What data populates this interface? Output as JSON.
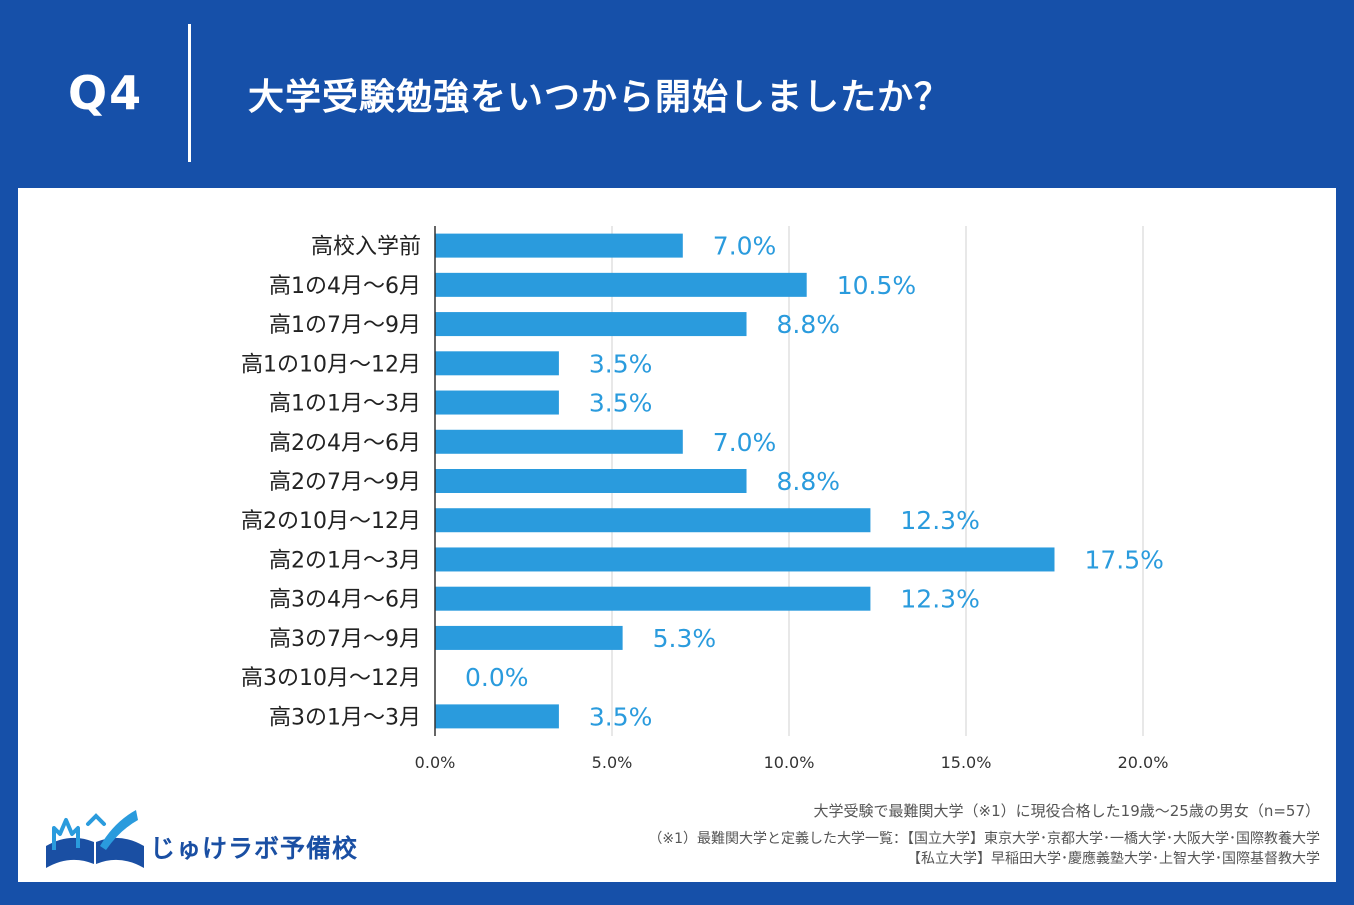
{
  "header": {
    "q_label": "Q4",
    "question": "大学受験勉強をいつから開始しましたか？"
  },
  "colors": {
    "background": "#1650a9",
    "bar": "#2a9bdd",
    "value_label": "#2a9bdd",
    "grid": "#d0d0d0",
    "axis": "#333333"
  },
  "chart_data": {
    "type": "bar",
    "orientation": "horizontal",
    "categories": [
      "高校入学前",
      "高1の4月〜6月",
      "高1の7月〜9月",
      "高1の10月〜12月",
      "高1の1月〜3月",
      "高2の4月〜6月",
      "高2の7月〜9月",
      "高2の10月〜12月",
      "高2の1月〜3月",
      "高3の4月〜6月",
      "高3の7月〜9月",
      "高3の10月〜12月",
      "高3の1月〜3月"
    ],
    "values": [
      7.0,
      10.5,
      8.8,
      3.5,
      3.5,
      7.0,
      8.8,
      12.3,
      17.5,
      12.3,
      5.3,
      0.0,
      3.5
    ],
    "value_labels": [
      "7.0%",
      "10.5%",
      "8.8%",
      "3.5%",
      "3.5%",
      "7.0%",
      "8.8%",
      "12.3%",
      "17.5%",
      "12.3%",
      "5.3%",
      "0.0%",
      "3.5%"
    ],
    "x_ticks": [
      0,
      5,
      10,
      15,
      20
    ],
    "x_tick_labels": [
      "0.0%",
      "5.0%",
      "10.0%",
      "15.0%",
      "20.0%"
    ],
    "xlim": [
      0,
      20
    ],
    "grid": true,
    "title": "",
    "xlabel": "",
    "ylabel": ""
  },
  "footer": {
    "logo_text": "じゅけラボ予備校",
    "note_1": "大学受験で最難関大学（※1）に現役合格した19歳〜25歳の男女（n=57）",
    "note_2": "（※1）最難関大学と定義した大学一覧：【国立大学】東京大学･京都大学･一橋大学･大阪大学･国際教養大学",
    "note_3": "【私立大学】早稲田大学･慶應義塾大学･上智大学･国際基督教大学"
  }
}
